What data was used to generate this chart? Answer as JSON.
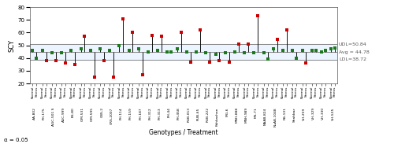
{
  "avg": 44.78,
  "udl": 50.84,
  "ldl": 38.72,
  "ylim": [
    20,
    80
  ],
  "yticks": [
    20,
    30,
    40,
    50,
    60,
    70,
    80
  ],
  "ylabel": "SCY",
  "xlabel": "Genotypes / Treatment",
  "alpha_text": "α = 0.05",
  "right_labels": {
    "udl": "UDL=50.84",
    "avg": "Avg = 44.78",
    "ldl": "LDL=38.72"
  },
  "genotypes": [
    "AA-802",
    "FH-175",
    "AGC-501 S",
    "AGC-999",
    "BS-80",
    "CIM-531",
    "CIM-595",
    "CBS-2",
    "CRS-2007",
    "FH-114",
    "FH-159",
    "FH-187",
    "FH-312",
    "FH-313",
    "FH-44",
    "FH-458",
    "RUB-013",
    "RUB-65",
    "RUB-222",
    "Kahkashan",
    "MG-6",
    "MNH-888",
    "MNH-989",
    "MS-71",
    "NAAB-824",
    "NuAB-1048",
    "NS-131",
    "Shahbaz",
    "VH-259",
    "VH-329",
    "VH-330",
    "VH-535"
  ],
  "normal_vals": [
    46,
    46,
    44,
    44,
    46,
    47,
    46,
    47,
    46,
    50,
    46,
    47,
    45,
    46,
    45,
    47,
    45,
    45,
    44,
    43,
    44,
    45,
    44,
    44,
    44,
    47,
    46,
    46,
    46,
    46,
    45,
    47
  ],
  "stress_vals": [
    40,
    38,
    38,
    36,
    35,
    57,
    25,
    38,
    25,
    71,
    60,
    27,
    58,
    57,
    45,
    60,
    37,
    62,
    37,
    38,
    37,
    51,
    51,
    73,
    39,
    55,
    62,
    40,
    36,
    46,
    46,
    48
  ],
  "normal_color": "#1a7a1a",
  "sig_color": "#cc0000",
  "nonsig_color": "#1a7a1a",
  "line_color": "#111111",
  "band_color": "#ddeeff",
  "band_alpha": 0.55,
  "right_label_color": "#555555",
  "fig_width": 5.0,
  "fig_height": 1.83,
  "dpi": 100
}
